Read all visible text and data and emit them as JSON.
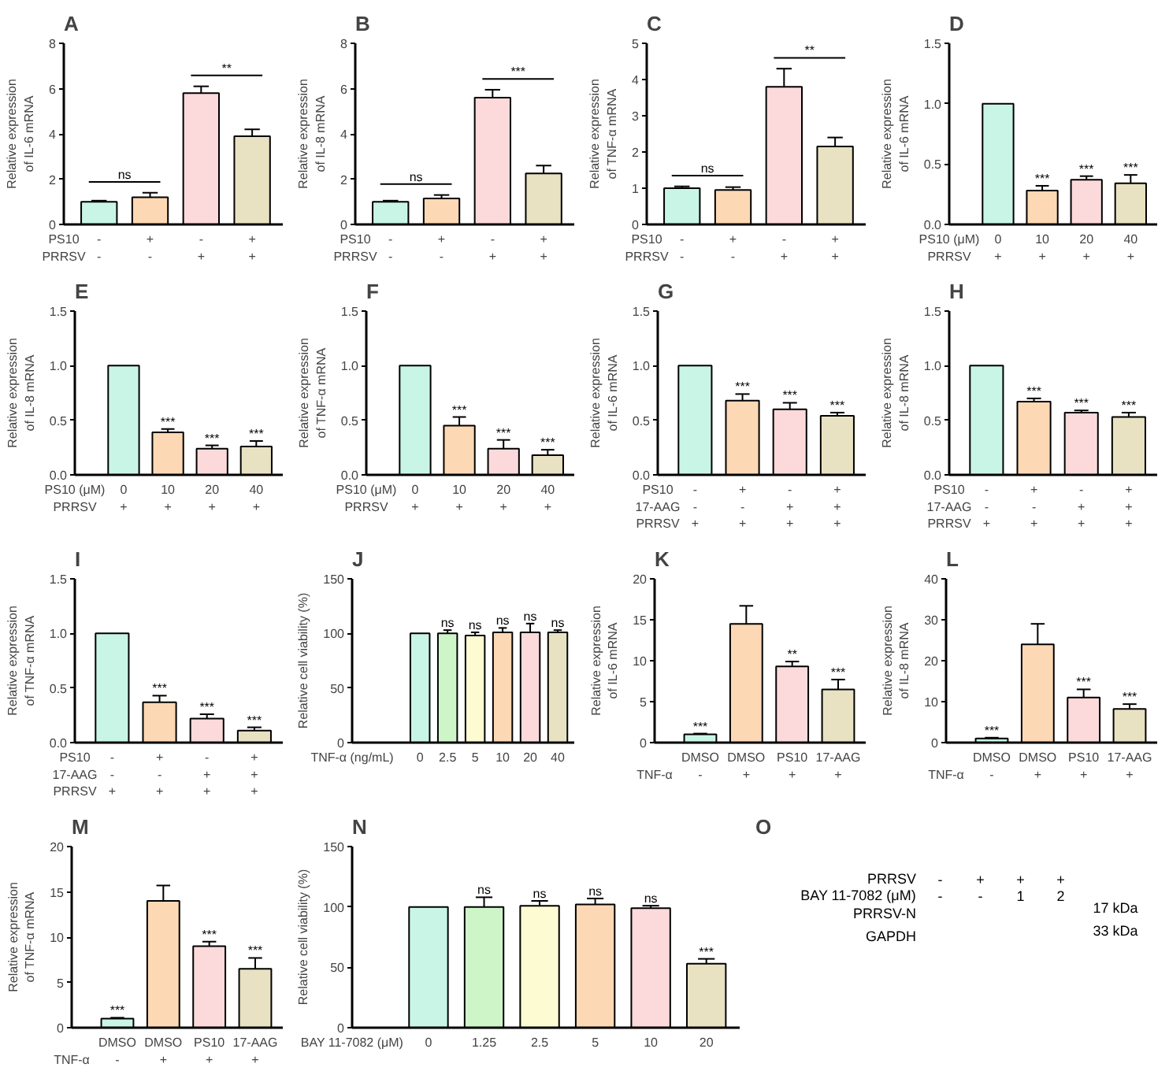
{
  "chart_data": [
    {
      "type": "bar",
      "title": "A",
      "ylabel": "Relative expression\nof IL-6 mRNA",
      "xlabel": "PS10\nPRRSV",
      "categories": [
        "-\n-",
        "+\n-",
        "-\n+",
        "+\n+"
      ],
      "values": [
        1,
        1.2,
        5.8,
        3.9
      ],
      "errors": [
        0.05,
        0.2,
        0.3,
        0.3
      ],
      "colors": [
        "#c9f5e6",
        "#fcd8b4",
        "#fcd9da",
        "#e8e2c2"
      ],
      "ylim": [
        0,
        8
      ],
      "yticks": [
        0,
        2,
        4,
        6,
        8
      ],
      "annotations": [
        "ns",
        "**"
      ]
    },
    {
      "type": "bar",
      "title": "B",
      "ylabel": "Relative expression\nof IL-8 mRNA",
      "xlabel": "PS10\nPRRSV",
      "categories": [
        "-\n-",
        "+\n-",
        "-\n+",
        "+\n+"
      ],
      "values": [
        1,
        1.15,
        5.6,
        2.25
      ],
      "errors": [
        0.05,
        0.15,
        0.35,
        0.35
      ],
      "colors": [
        "#c9f5e6",
        "#fcd8b4",
        "#fcd9da",
        "#e8e2c2"
      ],
      "ylim": [
        0,
        8
      ],
      "yticks": [
        0,
        2,
        4,
        6,
        8
      ],
      "annotations": [
        "ns",
        "***"
      ]
    },
    {
      "type": "bar",
      "title": "C",
      "ylabel": "Relative expression\nof TNF-α mRNA",
      "xlabel": "PS10\nPRRSV",
      "categories": [
        "-\n-",
        "+\n-",
        "-\n+",
        "+\n+"
      ],
      "values": [
        1,
        0.95,
        3.8,
        2.15
      ],
      "errors": [
        0.05,
        0.08,
        0.5,
        0.25
      ],
      "colors": [
        "#c9f5e6",
        "#fcd8b4",
        "#fcd9da",
        "#e8e2c2"
      ],
      "ylim": [
        0,
        5
      ],
      "yticks": [
        0,
        1,
        2,
        3,
        4,
        5
      ],
      "annotations": [
        "ns",
        "**"
      ]
    },
    {
      "type": "bar",
      "title": "D",
      "ylabel": "Relative expression\nof IL-6 mRNA",
      "xlabel": "PS10 (μM)\nPRRSV",
      "categories": [
        "0\n+",
        "10\n+",
        "20\n+",
        "40\n+"
      ],
      "values": [
        1,
        0.28,
        0.37,
        0.34
      ],
      "errors": [
        0,
        0.04,
        0.03,
        0.07
      ],
      "colors": [
        "#c9f5e6",
        "#fcd8b4",
        "#fcd9da",
        "#e8e2c2"
      ],
      "ylim": [
        0,
        1.5
      ],
      "yticks": [
        {
          "value": 0,
          "label": "0.0"
        },
        {
          "value": 0.5,
          "label": "0.5"
        },
        {
          "value": 1,
          "label": "1.0"
        },
        {
          "value": 1.5,
          "label": "1.5"
        }
      ],
      "annotations": [
        {
          "text": "***",
          "x": "10\n+",
          "y": 0.32
        },
        {
          "text": "***",
          "x": "20\n+",
          "y": 0.4
        },
        {
          "text": "***",
          "x": "40\n+",
          "y": 0.41
        }
      ]
    },
    {
      "type": "bar",
      "title": "E",
      "ylabel": "Relative expression\nof IL-8 mRNA",
      "xlabel": "PS10 (μM)\nPRRSV",
      "categories": [
        "0\n+",
        "10\n+",
        "20\n+",
        "40\n+"
      ],
      "values": [
        1,
        0.39,
        0.24,
        0.26
      ],
      "errors": [
        0,
        0.03,
        0.03,
        0.05
      ],
      "colors": [
        "#c9f5e6",
        "#fcd8b4",
        "#fcd9da",
        "#e8e2c2"
      ],
      "ylim": [
        0,
        1.5
      ],
      "yticks": [
        {
          "value": 0,
          "label": "0.0"
        },
        {
          "value": 0.5,
          "label": "0.5"
        },
        {
          "value": 1,
          "label": "1.0"
        },
        {
          "value": 1.5,
          "label": "1.5"
        }
      ],
      "annotations": [
        {
          "text": "***",
          "x": "10\n+",
          "y": 0.42
        },
        {
          "text": "***",
          "x": "20\n+",
          "y": 0.27
        },
        {
          "text": "***",
          "x": "40\n+",
          "y": 0.31
        }
      ]
    },
    {
      "type": "bar",
      "title": "F",
      "ylabel": "Relative expression\nof TNF-α mRNA",
      "xlabel": "PS10 (μM)\nPRRSV",
      "categories": [
        "0\n+",
        "10\n+",
        "20\n+",
        "40\n+"
      ],
      "values": [
        1,
        0.45,
        0.24,
        0.18
      ],
      "errors": [
        0,
        0.08,
        0.08,
        0.05
      ],
      "colors": [
        "#c9f5e6",
        "#fcd8b4",
        "#fcd9da",
        "#e8e2c2"
      ],
      "ylim": [
        0,
        1.5
      ],
      "yticks": [
        {
          "value": 0,
          "label": "0.0"
        },
        {
          "value": 0.5,
          "label": "0.5"
        },
        {
          "value": 1,
          "label": "1.0"
        },
        {
          "value": 1.5,
          "label": "1.5"
        }
      ],
      "annotations": [
        {
          "text": "***",
          "x": "10\n+",
          "y": 0.53
        },
        {
          "text": "***",
          "x": "20\n+",
          "y": 0.32
        },
        {
          "text": "***",
          "x": "40\n+",
          "y": 0.23
        }
      ]
    },
    {
      "type": "bar",
      "title": "G",
      "ylabel": "Relative expression\nof IL-6 mRNA",
      "xlabel": "PS10\n17-AAG\nPRRSV",
      "categories": [
        "-\n-\n+",
        "+\n-\n+",
        "-\n+\n+",
        "+\n+\n+"
      ],
      "values": [
        1,
        0.68,
        0.6,
        0.54
      ],
      "errors": [
        0,
        0.06,
        0.06,
        0.03
      ],
      "colors": [
        "#c9f5e6",
        "#fcd8b4",
        "#fcd9da",
        "#e8e2c2"
      ],
      "ylim": [
        0,
        1.5
      ],
      "yticks": [
        {
          "value": 0,
          "label": "0.0"
        },
        {
          "value": 0.5,
          "label": "0.5"
        },
        {
          "value": 1,
          "label": "1.0"
        },
        {
          "value": 1.5,
          "label": "1.5"
        }
      ],
      "annotations": [
        {
          "text": "***",
          "x": "+\n-\n+",
          "y": 0.74
        },
        {
          "text": "***",
          "x": "-\n+\n+",
          "y": 0.66
        },
        {
          "text": "***",
          "x": "+\n+\n+",
          "y": 0.57
        }
      ]
    },
    {
      "type": "bar",
      "title": "H",
      "ylabel": "Relative expression\nof IL-8 mRNA",
      "xlabel": "PS10\n17-AAG\nPRRSV",
      "categories": [
        "-\n-\n+",
        "+\n-\n+",
        "-\n+\n+",
        "+\n+\n+"
      ],
      "values": [
        1,
        0.67,
        0.57,
        0.53
      ],
      "errors": [
        0,
        0.03,
        0.02,
        0.04
      ],
      "colors": [
        "#c9f5e6",
        "#fcd8b4",
        "#fcd9da",
        "#e8e2c2"
      ],
      "ylim": [
        0,
        1.5
      ],
      "yticks": [
        {
          "value": 0,
          "label": "0.0"
        },
        {
          "value": 0.5,
          "label": "0.5"
        },
        {
          "value": 1,
          "label": "1.0"
        },
        {
          "value": 1.5,
          "label": "1.5"
        }
      ],
      "annotations": [
        {
          "text": "***",
          "x": "+\n-\n+",
          "y": 0.7
        },
        {
          "text": "***",
          "x": "-\n+\n+",
          "y": 0.59
        },
        {
          "text": "***",
          "x": "+\n+\n+",
          "y": 0.57
        }
      ]
    },
    {
      "type": "bar",
      "title": "I",
      "ylabel": "Relative expression\nof TNF-α mRNA",
      "xlabel": "PS10\n17-AAG\nPRRSV",
      "categories": [
        "-\n-\n+",
        "+\n-\n+",
        "-\n+\n+",
        "+\n+\n+"
      ],
      "values": [
        1,
        0.37,
        0.22,
        0.11
      ],
      "errors": [
        0,
        0.06,
        0.04,
        0.03
      ],
      "colors": [
        "#c9f5e6",
        "#fcd8b4",
        "#fcd9da",
        "#e8e2c2"
      ],
      "ylim": [
        0,
        1.5
      ],
      "yticks": [
        {
          "value": 0,
          "label": "0.0"
        },
        {
          "value": 0.5,
          "label": "0.5"
        },
        {
          "value": 1,
          "label": "1.0"
        },
        {
          "value": 1.5,
          "label": "1.5"
        }
      ],
      "annotations": [
        {
          "text": "***",
          "x": "+\n-\n+",
          "y": 0.43
        },
        {
          "text": "***",
          "x": "-\n+\n+",
          "y": 0.26
        },
        {
          "text": "***",
          "x": "+\n+\n+",
          "y": 0.14
        }
      ]
    },
    {
      "type": "bar",
      "title": "J",
      "ylabel": "Relative cell viability (%)",
      "xlabel": "TNF-α (ng/mL)",
      "categories": [
        "0",
        "2.5",
        "5",
        "10",
        "20",
        "40"
      ],
      "values": [
        100,
        100,
        98,
        101,
        101,
        101
      ],
      "errors": [
        0,
        3,
        3,
        4,
        8,
        2
      ],
      "colors": [
        "#c9f5e6",
        "#cdf5c8",
        "#fdfbd2",
        "#fcd8b4",
        "#fcd9da",
        "#e8e2c2"
      ],
      "ylim": [
        0,
        150
      ],
      "yticks": [
        0,
        50,
        100,
        150
      ],
      "annotations": [
        {
          "text": "ns",
          "x": "2.5",
          "y": 103
        },
        {
          "text": "ns",
          "x": "5",
          "y": 101
        },
        {
          "text": "ns",
          "x": "10",
          "y": 105
        },
        {
          "text": "ns",
          "x": "20",
          "y": 109
        },
        {
          "text": "ns",
          "x": "40",
          "y": 103
        }
      ]
    },
    {
      "type": "bar",
      "title": "K",
      "ylabel": "Relative expression\nof IL-6 mRNA",
      "xlabel": "TNF-α",
      "categories": [
        "DMSO\n-",
        "DMSO\n+",
        "PS10\n+",
        "17-AAG\n+"
      ],
      "values": [
        1,
        14.5,
        9.3,
        6.5
      ],
      "errors": [
        0.1,
        2.2,
        0.6,
        1.2
      ],
      "colors": [
        "#c9f5e6",
        "#fcd8b4",
        "#fcd9da",
        "#e8e2c2"
      ],
      "ylim": [
        0,
        20
      ],
      "yticks": [
        0,
        5,
        10,
        15,
        20
      ],
      "annotations": [
        {
          "text": "***",
          "x": "DMSO\n-",
          "y": 1.1
        },
        {
          "text": "**",
          "x": "PS10\n+",
          "y": 9.9
        },
        {
          "text": "***",
          "x": "17-AAG\n+",
          "y": 7.7
        }
      ]
    },
    {
      "type": "bar",
      "title": "L",
      "ylabel": "Relative expression\nof IL-8 mRNA",
      "xlabel": "TNF-α",
      "categories": [
        "DMSO\n-",
        "DMSO\n+",
        "PS10\n+",
        "17-AAG\n+"
      ],
      "values": [
        1,
        24,
        11,
        8.2
      ],
      "errors": [
        0.2,
        5,
        2,
        1.2
      ],
      "colors": [
        "#c9f5e6",
        "#fcd8b4",
        "#fcd9da",
        "#e8e2c2"
      ],
      "ylim": [
        0,
        40
      ],
      "yticks": [
        0,
        10,
        20,
        30,
        40
      ],
      "annotations": [
        {
          "text": "***",
          "x": "DMSO\n-",
          "y": 1.2
        },
        {
          "text": "***",
          "x": "PS10\n+",
          "y": 13
        },
        {
          "text": "***",
          "x": "17-AAG\n+",
          "y": 9.4
        }
      ]
    },
    {
      "type": "bar",
      "title": "M",
      "ylabel": "Relative expression\nof TNF-α mRNA",
      "xlabel": "TNF-α",
      "categories": [
        "DMSO\n-",
        "DMSO\n+",
        "PS10\n+",
        "17-AAG\n+"
      ],
      "values": [
        1,
        14,
        9,
        6.5
      ],
      "errors": [
        0.1,
        1.7,
        0.5,
        1.2
      ],
      "colors": [
        "#c9f5e6",
        "#fcd8b4",
        "#fcd9da",
        "#e8e2c2"
      ],
      "ylim": [
        0,
        20
      ],
      "yticks": [
        0,
        5,
        10,
        15,
        20
      ],
      "annotations": [
        {
          "text": "***",
          "x": "DMSO\n-",
          "y": 1.1
        },
        {
          "text": "***",
          "x": "PS10\n+",
          "y": 9.5
        },
        {
          "text": "***",
          "x": "17-AAG\n+",
          "y": 7.7
        }
      ]
    },
    {
      "type": "bar",
      "title": "N",
      "ylabel": "Relative cell viability (%)",
      "xlabel": "BAY 11-7082 (μM)",
      "categories": [
        "0",
        "1.25",
        "2.5",
        "5",
        "10",
        "20"
      ],
      "values": [
        100,
        100,
        101,
        102,
        99,
        53
      ],
      "errors": [
        0,
        8,
        4,
        5,
        2,
        4
      ],
      "colors": [
        "#c9f5e6",
        "#cdf5c8",
        "#fdfbd2",
        "#fcd8b4",
        "#fcd9da",
        "#e8e2c2"
      ],
      "ylim": [
        0,
        150
      ],
      "yticks": [
        0,
        50,
        100,
        150
      ],
      "annotations": [
        {
          "text": "ns",
          "x": "1.25",
          "y": 108
        },
        {
          "text": "ns",
          "x": "2.5",
          "y": 105
        },
        {
          "text": "ns",
          "x": "5",
          "y": 107
        },
        {
          "text": "ns",
          "x": "10",
          "y": 101
        },
        {
          "text": "***",
          "x": "20",
          "y": 57
        }
      ]
    },
    {
      "type": "other",
      "title": "O",
      "categories": [
        null,
        null,
        null,
        null
      ],
      "y_categories": [
        "PRRSV",
        "BAY 11-7082 (μM)"
      ],
      "cell_labels": [
        [
          "-",
          "+",
          "+",
          "+"
        ],
        [
          "-",
          "-",
          "1",
          "2"
        ]
      ],
      "y2_categories": [
        "PRRSV-N",
        "GAPDH"
      ],
      "annotations": [
        "17 kDa",
        "33 kDa"
      ]
    }
  ]
}
